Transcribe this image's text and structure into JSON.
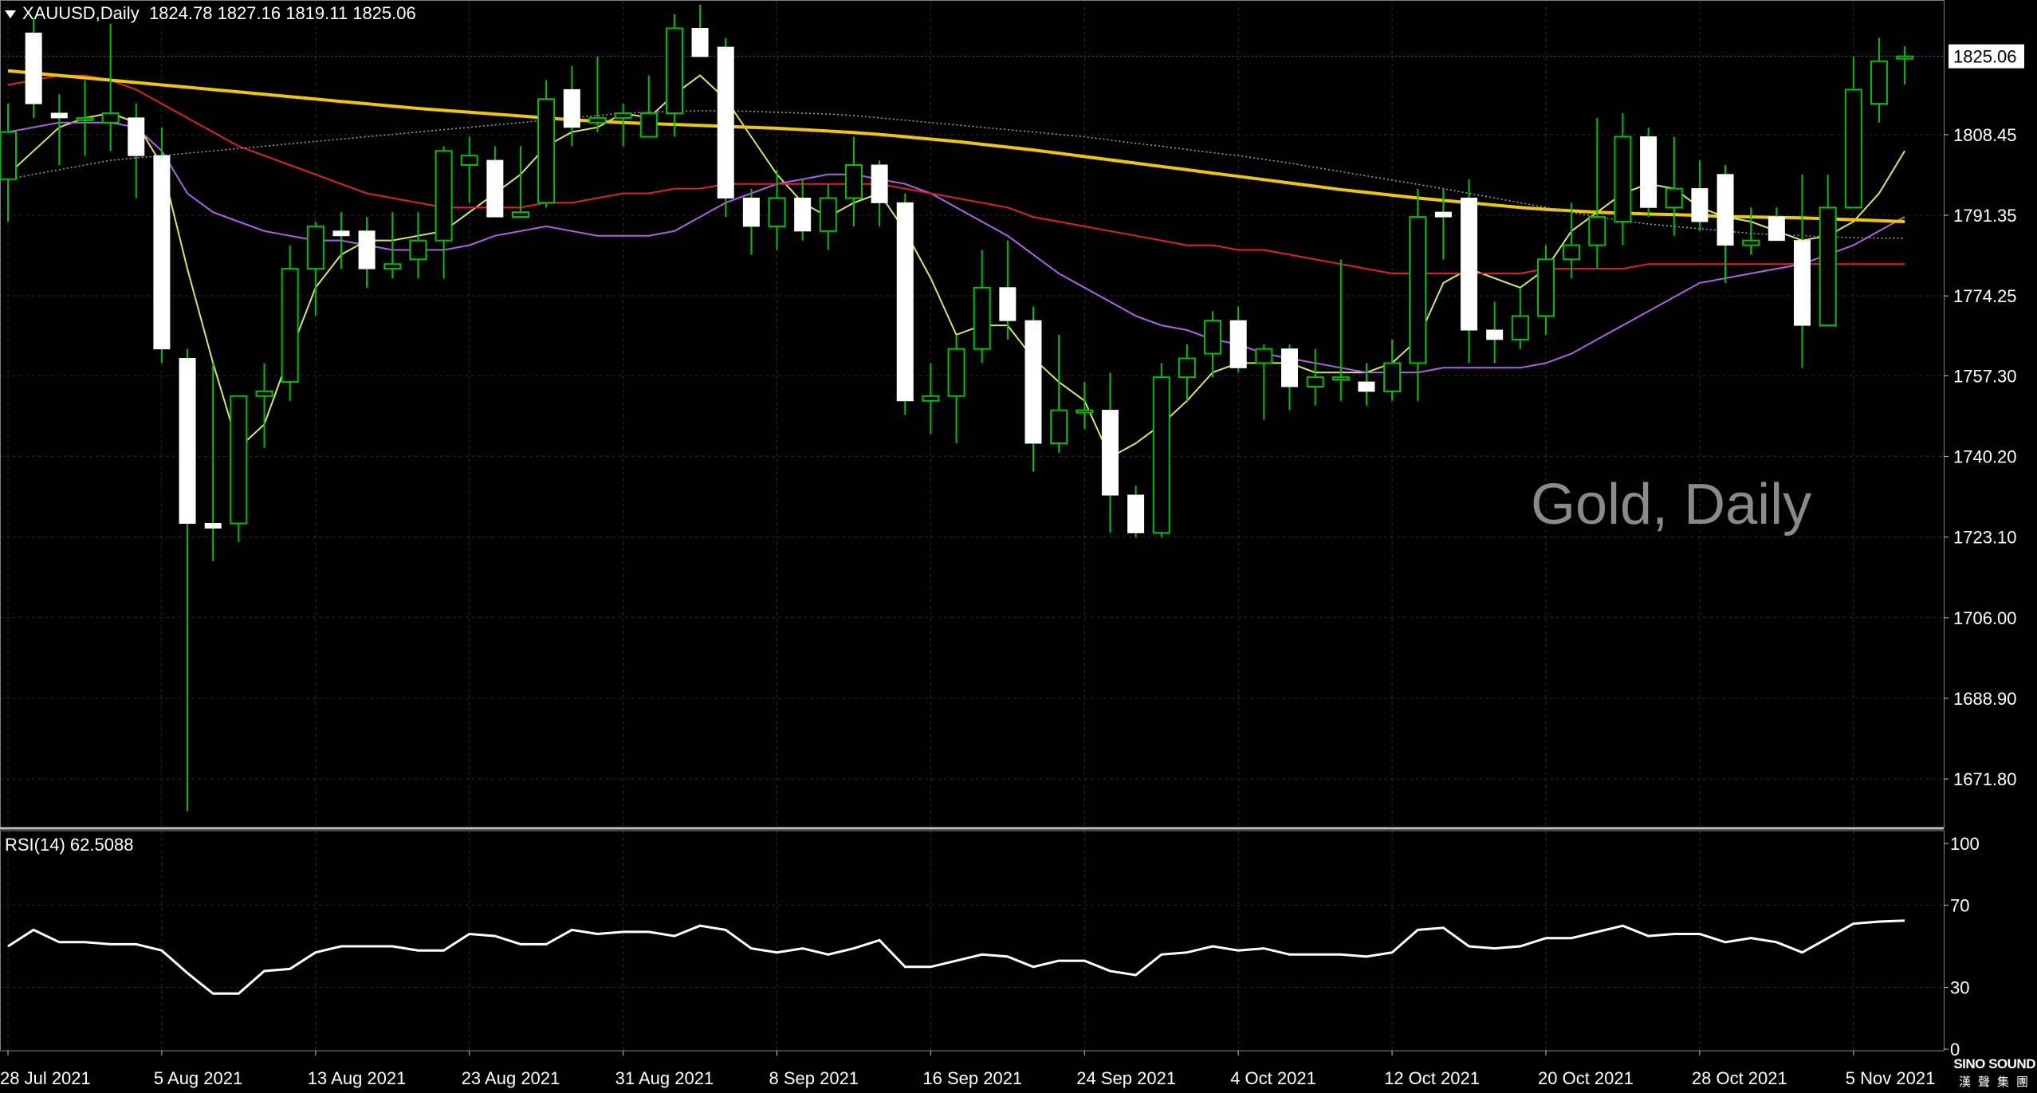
{
  "header": {
    "symbol": "XAUUSD,Daily",
    "ohlc": "1824.78 1827.16 1819.11 1825.06"
  },
  "watermark": "Gold, Daily",
  "rsi_header": "RSI(14) 62.5088",
  "logo": {
    "line1": "SINO SOUND",
    "line2": "漢聲集團"
  },
  "colors": {
    "background": "#000000",
    "grid": "#2a2a2a",
    "bull_body": "#000000",
    "bull_border": "#00c000",
    "bear_body": "#ffffff",
    "wick": "#00c000",
    "ma_fast": "#d8e85c",
    "ma_violet": "#b060e8",
    "ma_red": "#e0202a",
    "ma_gold": "#f0c800",
    "ma_dots": "#a0a0a0",
    "rsi": "#ffffff"
  },
  "chart_data": [
    {
      "type": "candlestick",
      "symbol": "XAUUSD",
      "timeframe": "Daily",
      "current_price": 1825.06,
      "y_ticks": [
        "1825.06",
        "1808.45",
        "1791.35",
        "1774.25",
        "1757.30",
        "1740.20",
        "1723.10",
        "1706.00",
        "1688.90",
        "1671.80"
      ],
      "y_tick_values": [
        1808.45,
        1791.35,
        1774.25,
        1757.3,
        1740.2,
        1723.1,
        1706.0,
        1688.9,
        1671.8
      ],
      "ylim": [
        1661.5,
        1837.0
      ],
      "x_ticks": [
        "28 Jul 2021",
        "5 Aug 2021",
        "13 Aug 2021",
        "23 Aug 2021",
        "31 Aug 2021",
        "8 Sep 2021",
        "16 Sep 2021",
        "24 Sep 2021",
        "4 Oct 2021",
        "12 Oct 2021",
        "20 Oct 2021",
        "28 Oct 2021",
        "5 Nov 2021"
      ],
      "x_tick_index": [
        0,
        6,
        12,
        18,
        24,
        30,
        36,
        42,
        48,
        54,
        60,
        66,
        72
      ],
      "candles": [
        {
          "o": 1799,
          "h": 1815,
          "l": 1790,
          "c": 1809
        },
        {
          "o": 1830,
          "h": 1833,
          "l": 1812,
          "c": 1815
        },
        {
          "o": 1813,
          "h": 1817,
          "l": 1802,
          "c": 1812
        },
        {
          "o": 1812,
          "h": 1820,
          "l": 1804,
          "c": 1812
        },
        {
          "o": 1811,
          "h": 1832,
          "l": 1805,
          "c": 1813
        },
        {
          "o": 1812,
          "h": 1815,
          "l": 1795,
          "c": 1804
        },
        {
          "o": 1804,
          "h": 1810,
          "l": 1760,
          "c": 1763
        },
        {
          "o": 1761,
          "h": 1763,
          "l": 1665,
          "c": 1726
        },
        {
          "o": 1726,
          "h": 1760,
          "l": 1718,
          "c": 1725
        },
        {
          "o": 1726,
          "h": 1752,
          "l": 1722,
          "c": 1753
        },
        {
          "o": 1753,
          "h": 1760,
          "l": 1742,
          "c": 1754
        },
        {
          "o": 1756,
          "h": 1785,
          "l": 1752,
          "c": 1780
        },
        {
          "o": 1780,
          "h": 1790,
          "l": 1770,
          "c": 1789
        },
        {
          "o": 1788,
          "h": 1792,
          "l": 1780,
          "c": 1787
        },
        {
          "o": 1788,
          "h": 1791,
          "l": 1776,
          "c": 1780
        },
        {
          "o": 1780,
          "h": 1792,
          "l": 1778,
          "c": 1781
        },
        {
          "o": 1782,
          "h": 1792,
          "l": 1778,
          "c": 1786
        },
        {
          "o": 1786,
          "h": 1806,
          "l": 1778,
          "c": 1805
        },
        {
          "o": 1802,
          "h": 1808,
          "l": 1794,
          "c": 1804
        },
        {
          "o": 1803,
          "h": 1806,
          "l": 1791,
          "c": 1791
        },
        {
          "o": 1791,
          "h": 1806,
          "l": 1791,
          "c": 1792
        },
        {
          "o": 1794,
          "h": 1820,
          "l": 1793,
          "c": 1816
        },
        {
          "o": 1818,
          "h": 1823,
          "l": 1806,
          "c": 1810
        },
        {
          "o": 1811,
          "h": 1825,
          "l": 1809,
          "c": 1812
        },
        {
          "o": 1812,
          "h": 1815,
          "l": 1806,
          "c": 1813
        },
        {
          "o": 1808,
          "h": 1821,
          "l": 1808,
          "c": 1813
        },
        {
          "o": 1813,
          "h": 1834,
          "l": 1808,
          "c": 1831
        },
        {
          "o": 1831,
          "h": 1836,
          "l": 1825,
          "c": 1825
        },
        {
          "o": 1827,
          "h": 1829,
          "l": 1791,
          "c": 1795
        },
        {
          "o": 1795,
          "h": 1797,
          "l": 1783,
          "c": 1789
        },
        {
          "o": 1789,
          "h": 1801,
          "l": 1784,
          "c": 1795
        },
        {
          "o": 1795,
          "h": 1799,
          "l": 1786,
          "c": 1788
        },
        {
          "o": 1788,
          "h": 1798,
          "l": 1784,
          "c": 1795
        },
        {
          "o": 1795,
          "h": 1808,
          "l": 1789,
          "c": 1802
        },
        {
          "o": 1802,
          "h": 1803,
          "l": 1789,
          "c": 1794
        },
        {
          "o": 1794,
          "h": 1796,
          "l": 1749,
          "c": 1752
        },
        {
          "o": 1752,
          "h": 1760,
          "l": 1745,
          "c": 1753
        },
        {
          "o": 1753,
          "h": 1766,
          "l": 1743,
          "c": 1763
        },
        {
          "o": 1763,
          "h": 1784,
          "l": 1760,
          "c": 1776
        },
        {
          "o": 1776,
          "h": 1786,
          "l": 1765,
          "c": 1769
        },
        {
          "o": 1769,
          "h": 1772,
          "l": 1737,
          "c": 1743
        },
        {
          "o": 1743,
          "h": 1766,
          "l": 1741,
          "c": 1750
        },
        {
          "o": 1750,
          "h": 1756,
          "l": 1746,
          "c": 1750
        },
        {
          "o": 1750,
          "h": 1758,
          "l": 1724,
          "c": 1732
        },
        {
          "o": 1732,
          "h": 1734,
          "l": 1723,
          "c": 1724
        },
        {
          "o": 1724,
          "h": 1760,
          "l": 1723,
          "c": 1757
        },
        {
          "o": 1757,
          "h": 1764,
          "l": 1752,
          "c": 1761
        },
        {
          "o": 1762,
          "h": 1771,
          "l": 1757,
          "c": 1769
        },
        {
          "o": 1769,
          "h": 1772,
          "l": 1758,
          "c": 1759
        },
        {
          "o": 1760,
          "h": 1764,
          "l": 1748,
          "c": 1763
        },
        {
          "o": 1763,
          "h": 1764,
          "l": 1750,
          "c": 1755
        },
        {
          "o": 1755,
          "h": 1763,
          "l": 1751,
          "c": 1757
        },
        {
          "o": 1757,
          "h": 1782,
          "l": 1752,
          "c": 1757
        },
        {
          "o": 1756,
          "h": 1760,
          "l": 1751,
          "c": 1754
        },
        {
          "o": 1754,
          "h": 1765,
          "l": 1752,
          "c": 1760
        },
        {
          "o": 1760,
          "h": 1797,
          "l": 1752,
          "c": 1791
        },
        {
          "o": 1792,
          "h": 1797,
          "l": 1782,
          "c": 1791
        },
        {
          "o": 1795,
          "h": 1799,
          "l": 1760,
          "c": 1767
        },
        {
          "o": 1767,
          "h": 1773,
          "l": 1760,
          "c": 1765
        },
        {
          "o": 1765,
          "h": 1776,
          "l": 1763,
          "c": 1770
        },
        {
          "o": 1770,
          "h": 1785,
          "l": 1766,
          "c": 1782
        },
        {
          "o": 1782,
          "h": 1794,
          "l": 1778,
          "c": 1785
        },
        {
          "o": 1785,
          "h": 1812,
          "l": 1780,
          "c": 1791
        },
        {
          "o": 1790,
          "h": 1813,
          "l": 1785,
          "c": 1808
        },
        {
          "o": 1808,
          "h": 1810,
          "l": 1791,
          "c": 1793
        },
        {
          "o": 1793,
          "h": 1808,
          "l": 1787,
          "c": 1797
        },
        {
          "o": 1797,
          "h": 1803,
          "l": 1788,
          "c": 1790
        },
        {
          "o": 1800,
          "h": 1802,
          "l": 1777,
          "c": 1785
        },
        {
          "o": 1785,
          "h": 1793,
          "l": 1783,
          "c": 1786
        },
        {
          "o": 1791,
          "h": 1793,
          "l": 1786,
          "c": 1786
        },
        {
          "o": 1786,
          "h": 1800,
          "l": 1759,
          "c": 1768
        },
        {
          "o": 1768,
          "h": 1800,
          "l": 1768,
          "c": 1793
        },
        {
          "o": 1793,
          "h": 1825,
          "l": 1793,
          "c": 1818
        },
        {
          "o": 1815,
          "h": 1829,
          "l": 1811,
          "c": 1824
        },
        {
          "o": 1824.78,
          "h": 1827.16,
          "l": 1819.11,
          "c": 1825.06
        }
      ],
      "series": [
        {
          "line": "fast",
          "color": "#d8e85c",
          "values": [
            1800,
            1805,
            1810,
            1812,
            1813,
            1811,
            1802,
            1780,
            1760,
            1742,
            1747,
            1762,
            1776,
            1783,
            1786,
            1786,
            1787,
            1788,
            1792,
            1796,
            1800,
            1806,
            1809,
            1810,
            1813,
            1812,
            1817,
            1821,
            1816,
            1808,
            1800,
            1794,
            1791,
            1794,
            1796,
            1788,
            1778,
            1766,
            1768,
            1768,
            1761,
            1756,
            1752,
            1740,
            1743,
            1747,
            1752,
            1758,
            1760,
            1760,
            1760,
            1758,
            1758,
            1758,
            1760,
            1765,
            1777,
            1780,
            1778,
            1776,
            1780,
            1788,
            1792,
            1796,
            1798,
            1797,
            1793,
            1791,
            1790,
            1788,
            1786,
            1787,
            1790,
            1796,
            1805
          ]
        },
        {
          "line": "violet",
          "color": "#b060e8",
          "values": [
            1809,
            1810,
            1811,
            1811,
            1811,
            1810,
            1805,
            1796,
            1792,
            1790,
            1788,
            1787,
            1786,
            1786,
            1785,
            1784,
            1784,
            1784,
            1785,
            1787,
            1788,
            1789,
            1788,
            1787,
            1787,
            1787,
            1788,
            1791,
            1794,
            1796,
            1798,
            1799,
            1800,
            1800,
            1799,
            1798,
            1796,
            1793,
            1790,
            1787,
            1783,
            1779,
            1776,
            1773,
            1770,
            1768,
            1767,
            1765,
            1764,
            1762,
            1761,
            1760,
            1759,
            1758,
            1758,
            1758,
            1759,
            1759,
            1759,
            1759,
            1760,
            1762,
            1765,
            1768,
            1771,
            1774,
            1777,
            1778,
            1779,
            1780,
            1781,
            1783,
            1785,
            1788,
            1791
          ]
        },
        {
          "line": "red",
          "color": "#e0202a",
          "values": [
            1819,
            1820,
            1821,
            1821,
            1820,
            1818,
            1815,
            1812,
            1809,
            1806,
            1804,
            1802,
            1800,
            1798,
            1796,
            1795,
            1794,
            1793,
            1793,
            1793,
            1793,
            1794,
            1794,
            1795,
            1796,
            1796,
            1797,
            1797,
            1798,
            1798,
            1798,
            1798,
            1798,
            1798,
            1798,
            1797,
            1796,
            1795,
            1794,
            1793,
            1791,
            1790,
            1789,
            1788,
            1787,
            1786,
            1785,
            1785,
            1784,
            1784,
            1783,
            1782,
            1781,
            1780,
            1779,
            1779,
            1779,
            1779,
            1779,
            1779,
            1780,
            1780,
            1780,
            1780,
            1781,
            1781,
            1781,
            1781,
            1781,
            1781,
            1781,
            1781,
            1781,
            1781,
            1781
          ]
        },
        {
          "line": "gold",
          "color": "#f0c800",
          "values": [
            1822,
            1821.5,
            1821,
            1820.5,
            1820,
            1819.5,
            1819,
            1818.5,
            1818,
            1817.5,
            1817,
            1816.5,
            1816,
            1815.5,
            1815,
            1814.5,
            1814,
            1813.6,
            1813.2,
            1812.8,
            1812.4,
            1812,
            1811.6,
            1811.3,
            1811,
            1810.8,
            1810.6,
            1810.4,
            1810.2,
            1810,
            1809.8,
            1809.5,
            1809.2,
            1808.9,
            1808.5,
            1808,
            1807.5,
            1807,
            1806.4,
            1805.8,
            1805.2,
            1804.5,
            1803.8,
            1803.1,
            1802.4,
            1801.7,
            1801,
            1800.3,
            1799.6,
            1798.9,
            1798.2,
            1797.5,
            1796.8,
            1796.2,
            1795.6,
            1795,
            1794.5,
            1794,
            1793.5,
            1793,
            1792.6,
            1792.3,
            1792,
            1791.8,
            1791.6,
            1791.5,
            1791.3,
            1791.1,
            1791,
            1790.9,
            1790.8,
            1790.6,
            1790.4,
            1790.2,
            1790
          ]
        },
        {
          "line": "grey-dotted",
          "color": "#a0a0a0",
          "values": [
            1799,
            1800,
            1801,
            1802,
            1803,
            1803.5,
            1804,
            1804.5,
            1805,
            1805.5,
            1806,
            1806.5,
            1807,
            1807.5,
            1808,
            1808.5,
            1809,
            1809.5,
            1810,
            1810.5,
            1811,
            1811.5,
            1812,
            1812.5,
            1813,
            1813.2,
            1813.4,
            1813.5,
            1813.5,
            1813.4,
            1813.2,
            1813,
            1812.8,
            1812.5,
            1812,
            1811.5,
            1811,
            1810.5,
            1810,
            1809.5,
            1809,
            1808.5,
            1808,
            1807.3,
            1806.6,
            1806,
            1805.3,
            1804.6,
            1804,
            1803.2,
            1802.4,
            1801.5,
            1800.6,
            1799.7,
            1798.8,
            1797.9,
            1797,
            1796,
            1795,
            1794,
            1793,
            1792,
            1791,
            1790.2,
            1789.5,
            1789,
            1788.5,
            1788,
            1787.5,
            1787.2,
            1787,
            1786.8,
            1786.6,
            1786.5,
            1786.5
          ]
        }
      ]
    },
    {
      "type": "line",
      "name": "RSI(14)",
      "ylim": [
        0,
        100
      ],
      "y_ticks": [
        "100",
        "70",
        "30",
        "0"
      ],
      "y_tick_values": [
        100,
        70,
        30,
        0
      ],
      "current_value": 62.5088,
      "series": [
        {
          "color": "#ffffff",
          "values": [
            50,
            58,
            52,
            52,
            51,
            51,
            48,
            37,
            27,
            27,
            38,
            39,
            47,
            50,
            50,
            50,
            48,
            48,
            56,
            55,
            51,
            51,
            58,
            56,
            57,
            57,
            55,
            60,
            58,
            49,
            47,
            49,
            46,
            49,
            53,
            40,
            40,
            43,
            46,
            45,
            40,
            43,
            43,
            38,
            36,
            46,
            47,
            50,
            48,
            49,
            46,
            46,
            46,
            45,
            47,
            58,
            59,
            50,
            49,
            50,
            54,
            54,
            57,
            60,
            55,
            56,
            56,
            52,
            54,
            52,
            47,
            54,
            61,
            62,
            62.5088
          ]
        }
      ]
    }
  ]
}
